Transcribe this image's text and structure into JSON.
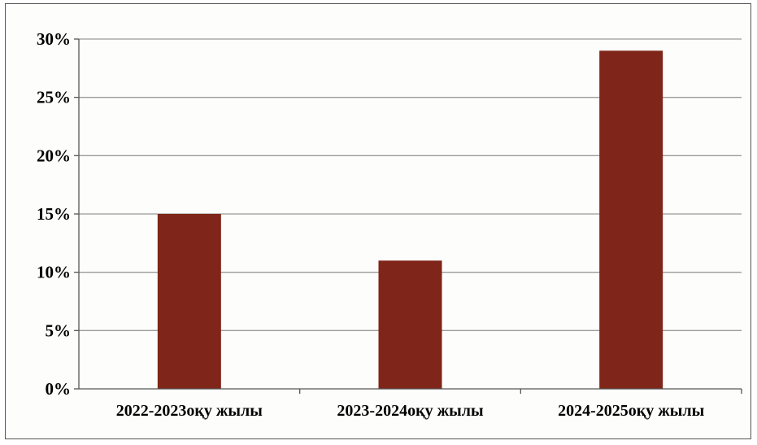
{
  "chart_data": {
    "type": "bar",
    "categories": [
      "2022-2023оқу жылы",
      "2023-2024оқу жылы",
      "2024-2025оқу жылы"
    ],
    "values": [
      15,
      11,
      29
    ],
    "ylim": [
      0,
      30
    ],
    "yticks": [
      0,
      5,
      10,
      15,
      20,
      25,
      30
    ],
    "ytick_labels": [
      "0%",
      "5%",
      "10%",
      "15%",
      "20%",
      "25%",
      "30%"
    ],
    "title": "",
    "xlabel": "",
    "ylabel": "",
    "grid": true,
    "legend": "none",
    "bar_color": "#7f2519",
    "grid_color": "#9a9a9a"
  }
}
